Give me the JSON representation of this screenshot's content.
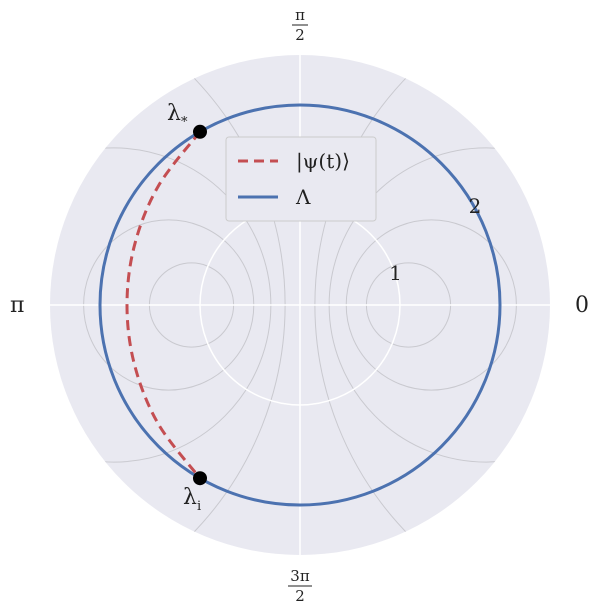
{
  "chart_data": {
    "type": "polar",
    "title": "",
    "colors": {
      "plot_background": "#e9e9f1",
      "grid": "#ffffff",
      "contour": "#c9c9cf",
      "series_path": "#c44e52",
      "series_circle": "#4c72b0",
      "endpoint": "#000000"
    },
    "radial_ticks": [
      "1",
      "2"
    ],
    "radial_range": [
      0,
      2.5
    ],
    "angle_labels": {
      "zero": "0",
      "half_pi": {
        "num": "π",
        "den": "2"
      },
      "pi": "π",
      "three_half_pi": {
        "num": "3π",
        "den": "2"
      }
    },
    "series": [
      {
        "name": "|ψ(t)⟩",
        "style": "dashed",
        "points": [
          {
            "r": 2.0,
            "theta_deg": 120
          },
          {
            "r": 1.85,
            "theta_deg": 140
          },
          {
            "r": 1.76,
            "theta_deg": 160
          },
          {
            "r": 1.73,
            "theta_deg": 180
          },
          {
            "r": 1.76,
            "theta_deg": 200
          },
          {
            "r": 1.85,
            "theta_deg": 220
          },
          {
            "r": 2.0,
            "theta_deg": 240
          }
        ]
      },
      {
        "name": "Λ",
        "style": "solid",
        "r": 2.0,
        "theta_range_deg": [
          0,
          360
        ]
      }
    ],
    "points": [
      {
        "label": "λ",
        "sub": "*",
        "r": 2.0,
        "theta_deg": 120
      },
      {
        "label": "λ",
        "sub": "i",
        "r": 2.0,
        "theta_deg": 240
      }
    ],
    "contours": {
      "description": "background level curves of log-ratio field between foci at r=1, theta=0 and theta=pi",
      "levels": [
        -1.6,
        -1.0,
        -0.6,
        -0.3,
        0.3,
        0.6,
        1.0,
        1.6
      ]
    },
    "legend": {
      "placement": "upper-center",
      "entries": [
        "|ψ(t)⟩",
        "Λ"
      ]
    }
  }
}
